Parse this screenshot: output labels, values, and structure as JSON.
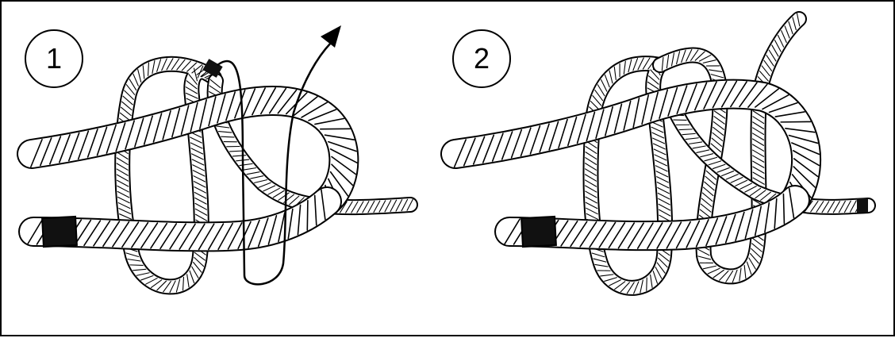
{
  "steps": [
    {
      "number": "1"
    },
    {
      "number": "2"
    }
  ],
  "colors": {
    "line": "#000000",
    "rope": "#ffffff",
    "whipping": "#111111"
  }
}
